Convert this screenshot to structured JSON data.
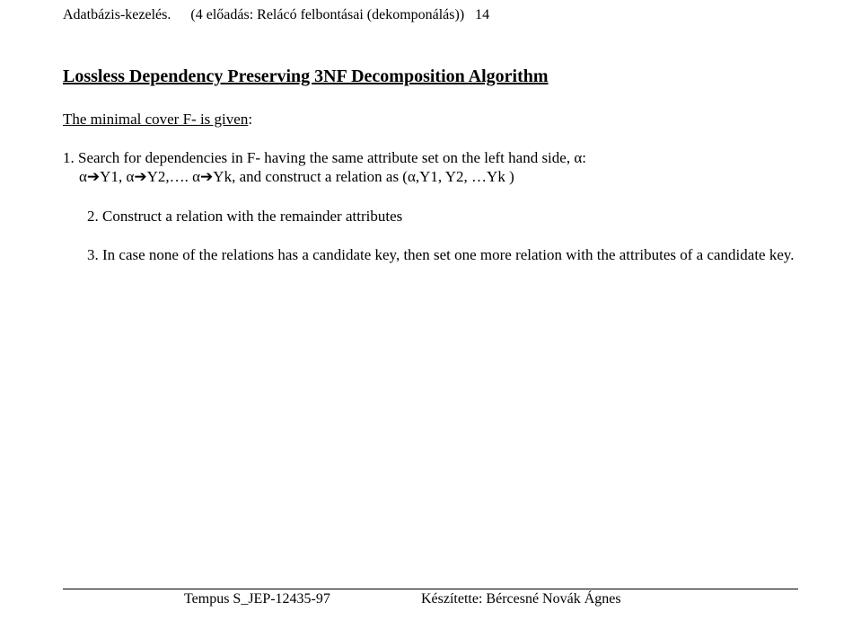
{
  "header": {
    "title": "Adatbázis-kezelés.",
    "subtitle": "(4 előadás: Relácó felbontásai (dekomponálás))",
    "page_number": "14"
  },
  "content": {
    "section_title": "Lossless Dependency Preserving 3NF Decomposition Algorithm",
    "subsection_prefix": "The minimal cover F- is given",
    "subsection_colon": ":",
    "items": {
      "item1_num": "1. ",
      "item1_line1": "Search for dependencies in F- having the same attribute set on the left hand side, α:",
      "item1_line2_a": "α",
      "item1_line2_b": "Y1, α",
      "item1_line2_c": "Y2,…. α",
      "item1_line2_d": "Yk, and construct a relation as (α,Y1, Y2, …Yk )",
      "item2_num": "2. ",
      "item2_text": "Construct a relation with the remainder attributes",
      "item3_num": "3. ",
      "item3_text": "In case none of the relations has a candidate key, then set one more relation with the attributes of a candidate key."
    }
  },
  "footer": {
    "left": "Tempus S_JEP-12435-97",
    "right": "Készítette: Bércesné Novák Ágnes"
  },
  "symbols": {
    "arrow": "➔"
  },
  "colors": {
    "text": "#000000",
    "background": "#ffffff"
  },
  "typography": {
    "body_font": "Times New Roman",
    "header_fontsize": 16,
    "title_fontsize": 20,
    "body_fontsize": 17,
    "footer_fontsize": 16
  }
}
